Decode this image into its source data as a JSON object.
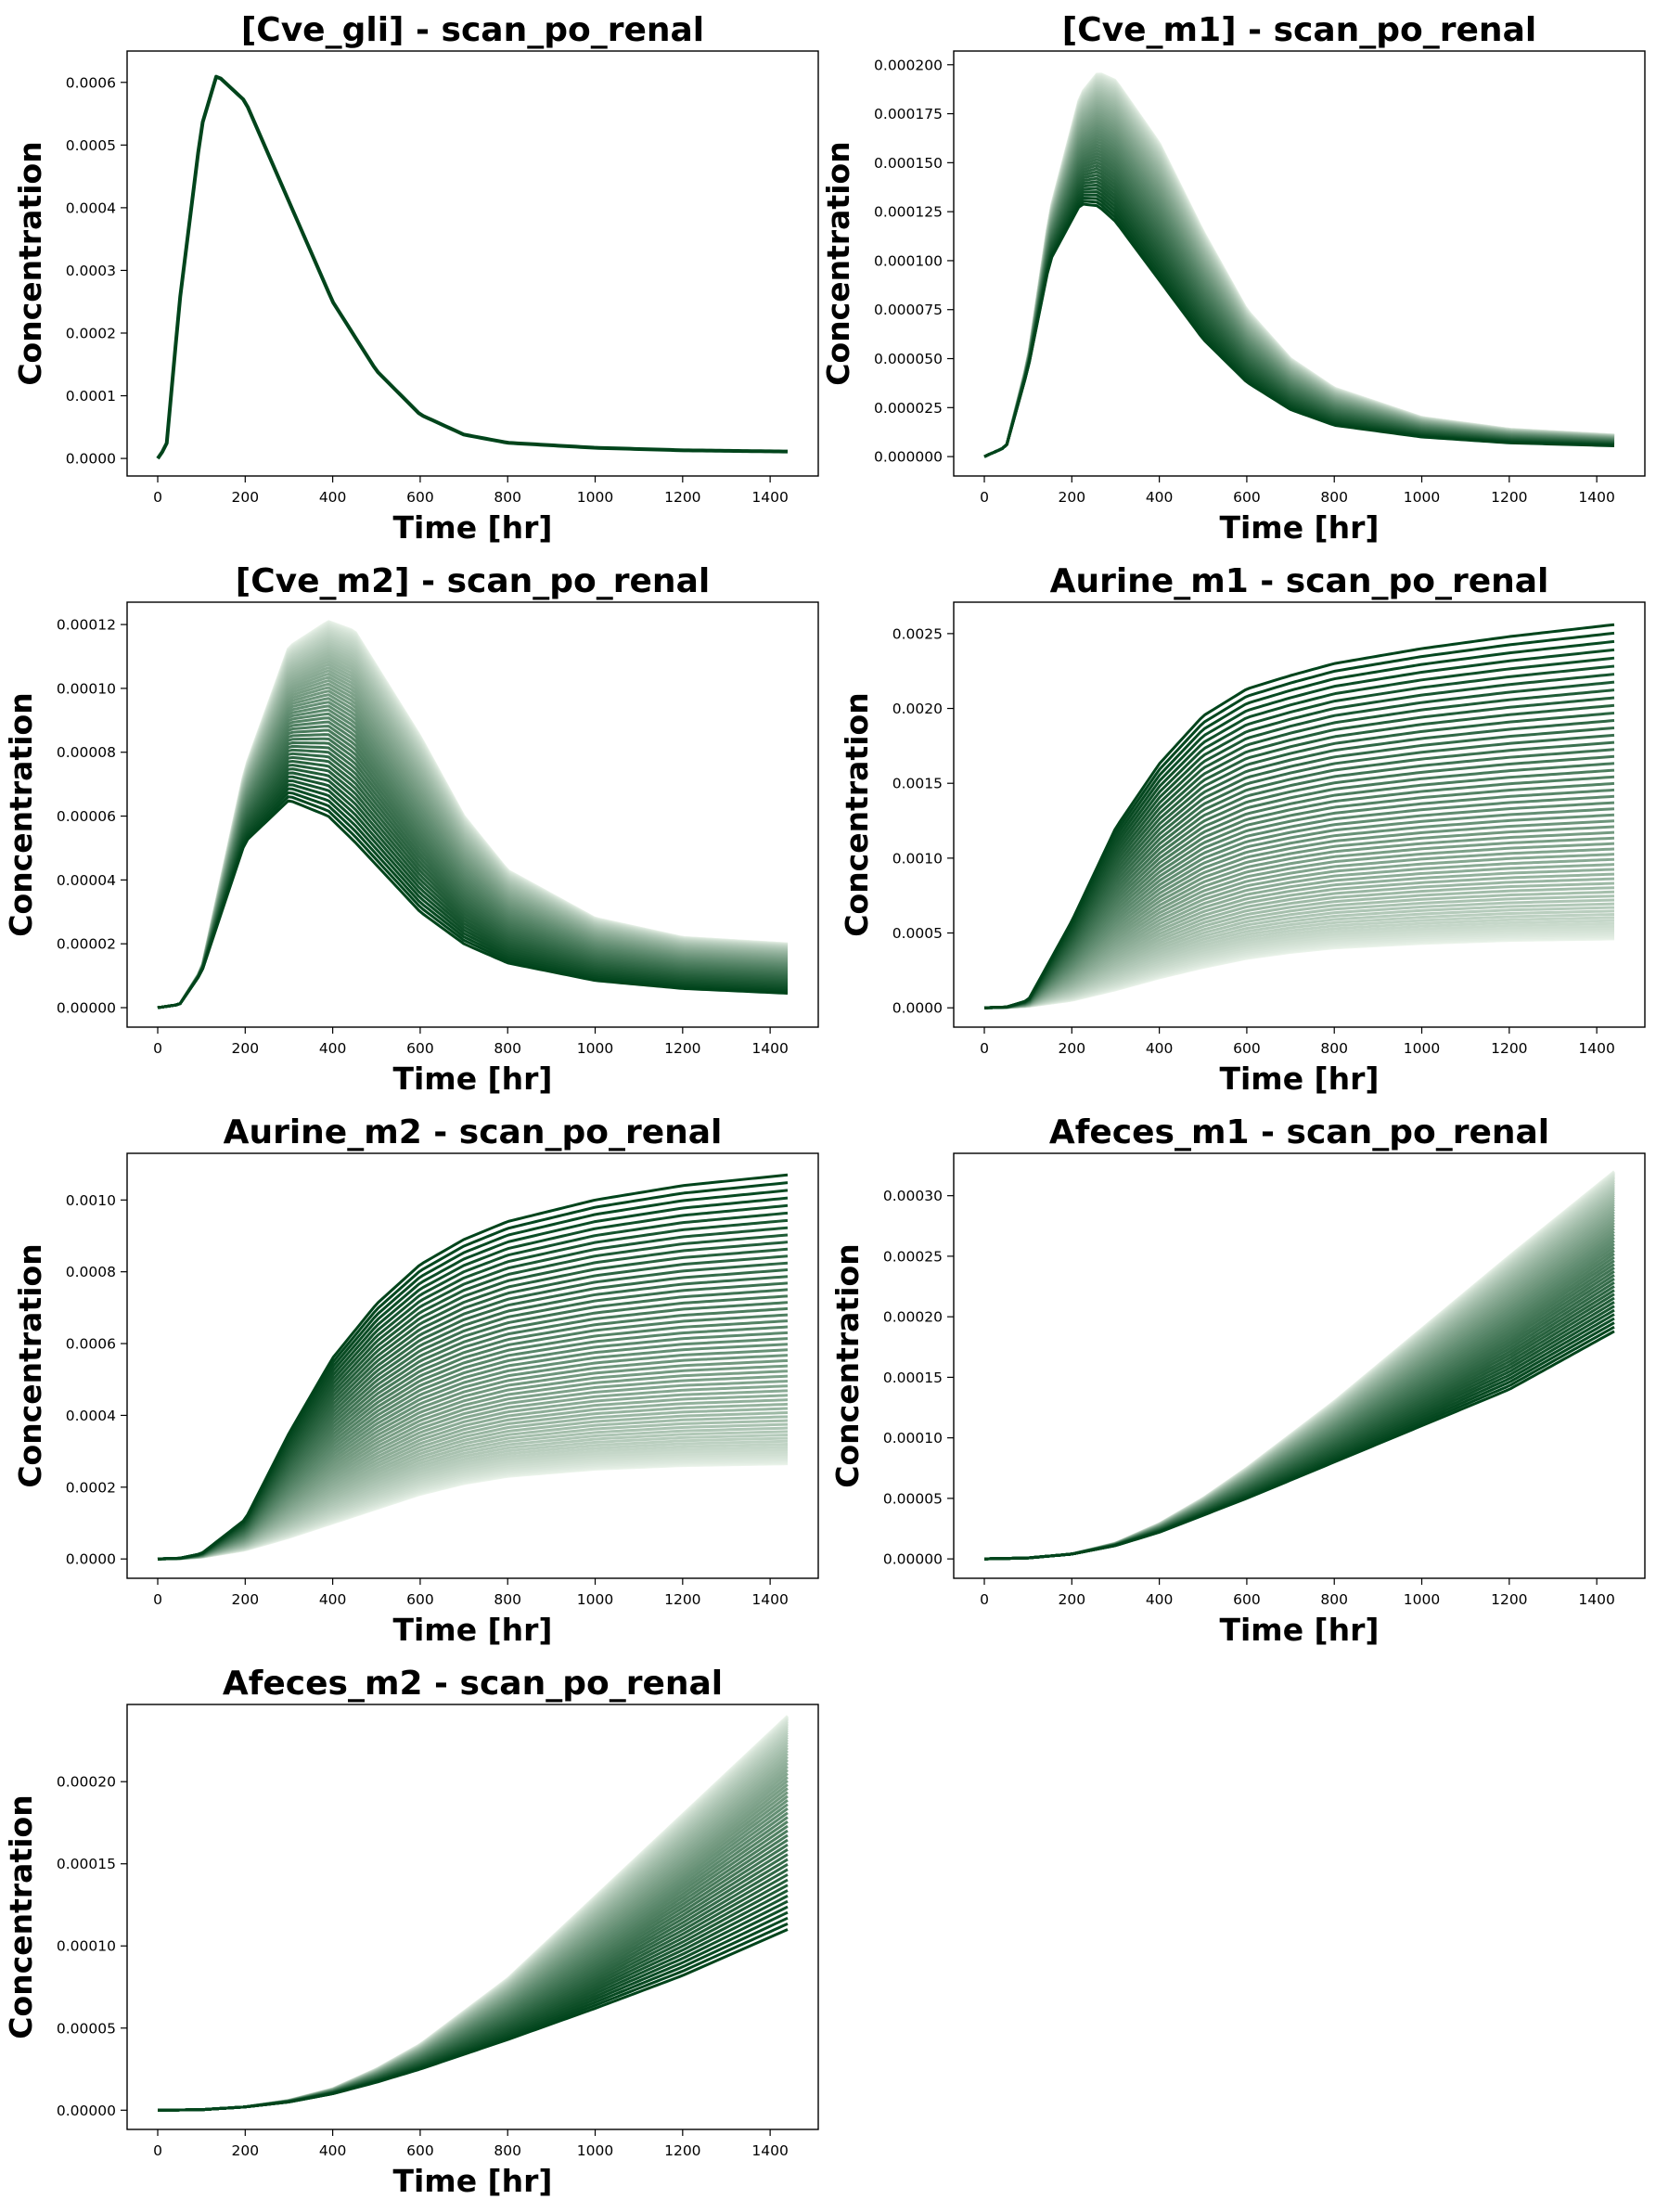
{
  "chart_data": [
    {
      "type": "line",
      "title": "[Cve_gli] - scan_po_renal",
      "xlabel": "Time [hr]",
      "ylabel": "Concentration",
      "xlim": [
        -70,
        1510
      ],
      "ylim": [
        -2.8e-05,
        0.00065
      ],
      "xticks": [
        "0",
        "200",
        "400",
        "600",
        "800",
        "1000",
        "1200",
        "1400"
      ],
      "yticks": [
        "0.0000",
        "0.0001",
        "0.0002",
        "0.0003",
        "0.0004",
        "0.0005",
        "0.0006"
      ],
      "colormap": "Greens",
      "color_light": "#f7fcf5",
      "color_dark": "#00441b",
      "series_count": 1,
      "curve": "peak",
      "series_envelope": {
        "x": [
          0,
          20,
          50,
          100,
          135,
          200,
          300,
          400,
          500,
          600,
          700,
          800,
          1000,
          1200,
          1440
        ],
        "y_light": [
          0,
          2e-05,
          0.00025,
          0.00053,
          0.000612,
          0.00057,
          0.00041,
          0.00025,
          0.00014,
          7e-05,
          3.8e-05,
          2.5e-05,
          1.7e-05,
          1.3e-05,
          1.1e-05
        ],
        "y_dark": [
          0,
          2e-05,
          0.00025,
          0.00053,
          0.000612,
          0.00057,
          0.00041,
          0.00025,
          0.00014,
          7e-05,
          3.8e-05,
          2.5e-05,
          1.7e-05,
          1.3e-05,
          1.1e-05
        ]
      }
    },
    {
      "type": "line",
      "title": "[Cve_m1] - scan_po_renal",
      "xlabel": "Time [hr]",
      "ylabel": "Concentration",
      "xlim": [
        -70,
        1510
      ],
      "ylim": [
        -9.9e-06,
        0.000207
      ],
      "xticks": [
        "0",
        "200",
        "400",
        "600",
        "800",
        "1000",
        "1200",
        "1400"
      ],
      "yticks": [
        "0.000000",
        "0.000025",
        "0.000050",
        "0.000075",
        "0.000100",
        "0.000125",
        "0.000150",
        "0.000175",
        "0.000200"
      ],
      "colormap": "Greens",
      "color_light": "#f7fcf5",
      "color_dark": "#00441b",
      "series_count": 60,
      "curve": "peak",
      "series_envelope": {
        "x": [
          0,
          50,
          100,
          150,
          220,
          260,
          300,
          400,
          500,
          600,
          700,
          800,
          1000,
          1200,
          1440
        ],
        "y_light": [
          0,
          5e-06,
          5e-05,
          0.000125,
          0.000185,
          0.000196,
          0.000192,
          0.00016,
          0.000115,
          7.5e-05,
          5e-05,
          3.5e-05,
          2e-05,
          1.4e-05,
          1.1e-05
        ],
        "y_dark": [
          0,
          5e-06,
          4.5e-05,
          0.0001,
          0.000129,
          0.000128,
          0.00012,
          9e-05,
          6e-05,
          3.8e-05,
          2.4e-05,
          1.6e-05,
          1e-05,
          7e-06,
          5.5e-06
        ]
      }
    },
    {
      "type": "line",
      "title": "[Cve_m2] - scan_po_renal",
      "xlabel": "Time [hr]",
      "ylabel": "Concentration",
      "xlim": [
        -70,
        1510
      ],
      "ylim": [
        -6.1e-06,
        0.000127
      ],
      "xticks": [
        "0",
        "200",
        "400",
        "600",
        "800",
        "1000",
        "1200",
        "1400"
      ],
      "yticks": [
        "0.00000",
        "0.00002",
        "0.00004",
        "0.00006",
        "0.00008",
        "0.00010",
        "0.00012"
      ],
      "colormap": "Greens",
      "color_light": "#f7fcf5",
      "color_dark": "#00441b",
      "series_count": 60,
      "curve": "peak",
      "series_envelope": {
        "x": [
          0,
          50,
          100,
          200,
          300,
          390,
          450,
          600,
          700,
          800,
          1000,
          1200,
          1440
        ],
        "y_light": [
          0,
          1e-06,
          1.2e-05,
          7.5e-05,
          0.000113,
          0.000121,
          0.000118,
          8.5e-05,
          6e-05,
          4.3e-05,
          2.8e-05,
          2.2e-05,
          2e-05
        ],
        "y_dark": [
          0,
          1e-06,
          1.1e-05,
          5.2e-05,
          6.5e-05,
          6e-05,
          5.2e-05,
          3e-05,
          2e-05,
          1.4e-05,
          8.5e-06,
          6e-06,
          4.5e-06
        ]
      }
    },
    {
      "type": "line",
      "title": "Aurine_m1 - scan_po_renal",
      "xlabel": "Time [hr]",
      "ylabel": "Concentration",
      "xlim": [
        -70,
        1510
      ],
      "ylim": [
        -0.000129,
        0.00271
      ],
      "xticks": [
        "0",
        "200",
        "400",
        "600",
        "800",
        "1000",
        "1200",
        "1400"
      ],
      "yticks": [
        "0.0000",
        "0.0005",
        "0.0010",
        "0.0015",
        "0.0020",
        "0.0025"
      ],
      "colormap": "Greens",
      "color_light": "#f7fcf5",
      "color_dark": "#00441b",
      "series_count": 60,
      "curve": "saturating",
      "series_envelope": {
        "x": [
          0,
          50,
          100,
          200,
          300,
          400,
          500,
          600,
          700,
          800,
          1000,
          1200,
          1440
        ],
        "y_light": [
          0,
          2e-06,
          1e-05,
          5e-05,
          0.00012,
          0.0002,
          0.00027,
          0.00033,
          0.00037,
          0.0004,
          0.00043,
          0.00045,
          0.00046
        ],
        "y_dark": [
          0,
          5e-06,
          5e-05,
          0.00058,
          0.0012,
          0.00163,
          0.00195,
          0.00213,
          0.00222,
          0.0023,
          0.0024,
          0.00248,
          0.00256
        ]
      }
    },
    {
      "type": "line",
      "title": "Aurine_m2 - scan_po_renal",
      "xlabel": "Time [hr]",
      "ylabel": "Concentration",
      "xlim": [
        -70,
        1510
      ],
      "ylim": [
        -5.38e-05,
        0.00113
      ],
      "xticks": [
        "0",
        "200",
        "400",
        "600",
        "800",
        "1000",
        "1200",
        "1400"
      ],
      "yticks": [
        "0.0000",
        "0.0002",
        "0.0004",
        "0.0006",
        "0.0008",
        "0.0010"
      ],
      "colormap": "Greens",
      "color_light": "#f7fcf5",
      "color_dark": "#00441b",
      "series_count": 60,
      "curve": "saturating",
      "series_envelope": {
        "x": [
          0,
          50,
          100,
          200,
          300,
          400,
          500,
          600,
          700,
          800,
          1000,
          1200,
          1440
        ],
        "y_light": [
          0,
          1e-06,
          5e-06,
          2.5e-05,
          6e-05,
          0.0001,
          0.00014,
          0.00018,
          0.00021,
          0.00023,
          0.00025,
          0.00026,
          0.000265
        ],
        "y_dark": [
          0,
          2e-06,
          1.5e-05,
          0.00011,
          0.00035,
          0.00056,
          0.00071,
          0.00082,
          0.00089,
          0.00094,
          0.001,
          0.00104,
          0.00107
        ]
      }
    },
    {
      "type": "line",
      "title": "Afeces_m1 - scan_po_renal",
      "xlabel": "Time [hr]",
      "ylabel": "Concentration",
      "xlim": [
        -70,
        1510
      ],
      "ylim": [
        -1.6e-05,
        0.000335
      ],
      "xticks": [
        "0",
        "200",
        "400",
        "600",
        "800",
        "1000",
        "1200",
        "1400"
      ],
      "yticks": [
        "0.00000",
        "0.00005",
        "0.00010",
        "0.00015",
        "0.00020",
        "0.00025",
        "0.00030"
      ],
      "colormap": "Greens",
      "color_light": "#f7fcf5",
      "color_dark": "#00441b",
      "series_count": 60,
      "curve": "rising",
      "series_envelope": {
        "x": [
          0,
          100,
          200,
          300,
          400,
          500,
          600,
          800,
          1000,
          1200,
          1440
        ],
        "y_light": [
          0,
          8e-07,
          4e-06,
          1.3e-05,
          2.9e-05,
          5e-05,
          7.5e-05,
          0.00013,
          0.00019,
          0.00025,
          0.00032
        ],
        "y_dark": [
          0,
          8e-07,
          4e-06,
          1.1e-05,
          2.2e-05,
          3.6e-05,
          5e-05,
          8e-05,
          0.00011,
          0.00014,
          0.000188
        ]
      }
    },
    {
      "type": "line",
      "title": "Afeces_m2 - scan_po_renal",
      "xlabel": "Time [hr]",
      "ylabel": "Concentration",
      "xlim": [
        -70,
        1510
      ],
      "ylim": [
        -1.17e-05,
        0.000247
      ],
      "xticks": [
        "0",
        "200",
        "400",
        "600",
        "800",
        "1000",
        "1200",
        "1400"
      ],
      "yticks": [
        "0.00000",
        "0.00005",
        "0.00010",
        "0.00015",
        "0.00020"
      ],
      "colormap": "Greens",
      "color_light": "#f7fcf5",
      "color_dark": "#00441b",
      "series_count": 60,
      "curve": "rising",
      "series_envelope": {
        "x": [
          0,
          100,
          200,
          300,
          400,
          500,
          600,
          800,
          1000,
          1200,
          1440
        ],
        "y_light": [
          0,
          3e-07,
          2e-06,
          6e-06,
          1.3e-05,
          2.5e-05,
          4e-05,
          8e-05,
          0.00013,
          0.00018,
          0.00024
        ],
        "y_dark": [
          0,
          3e-07,
          2e-06,
          5e-06,
          1e-05,
          1.7e-05,
          2.5e-05,
          4.3e-05,
          6.2e-05,
          8.2e-05,
          0.00011
        ]
      }
    }
  ]
}
